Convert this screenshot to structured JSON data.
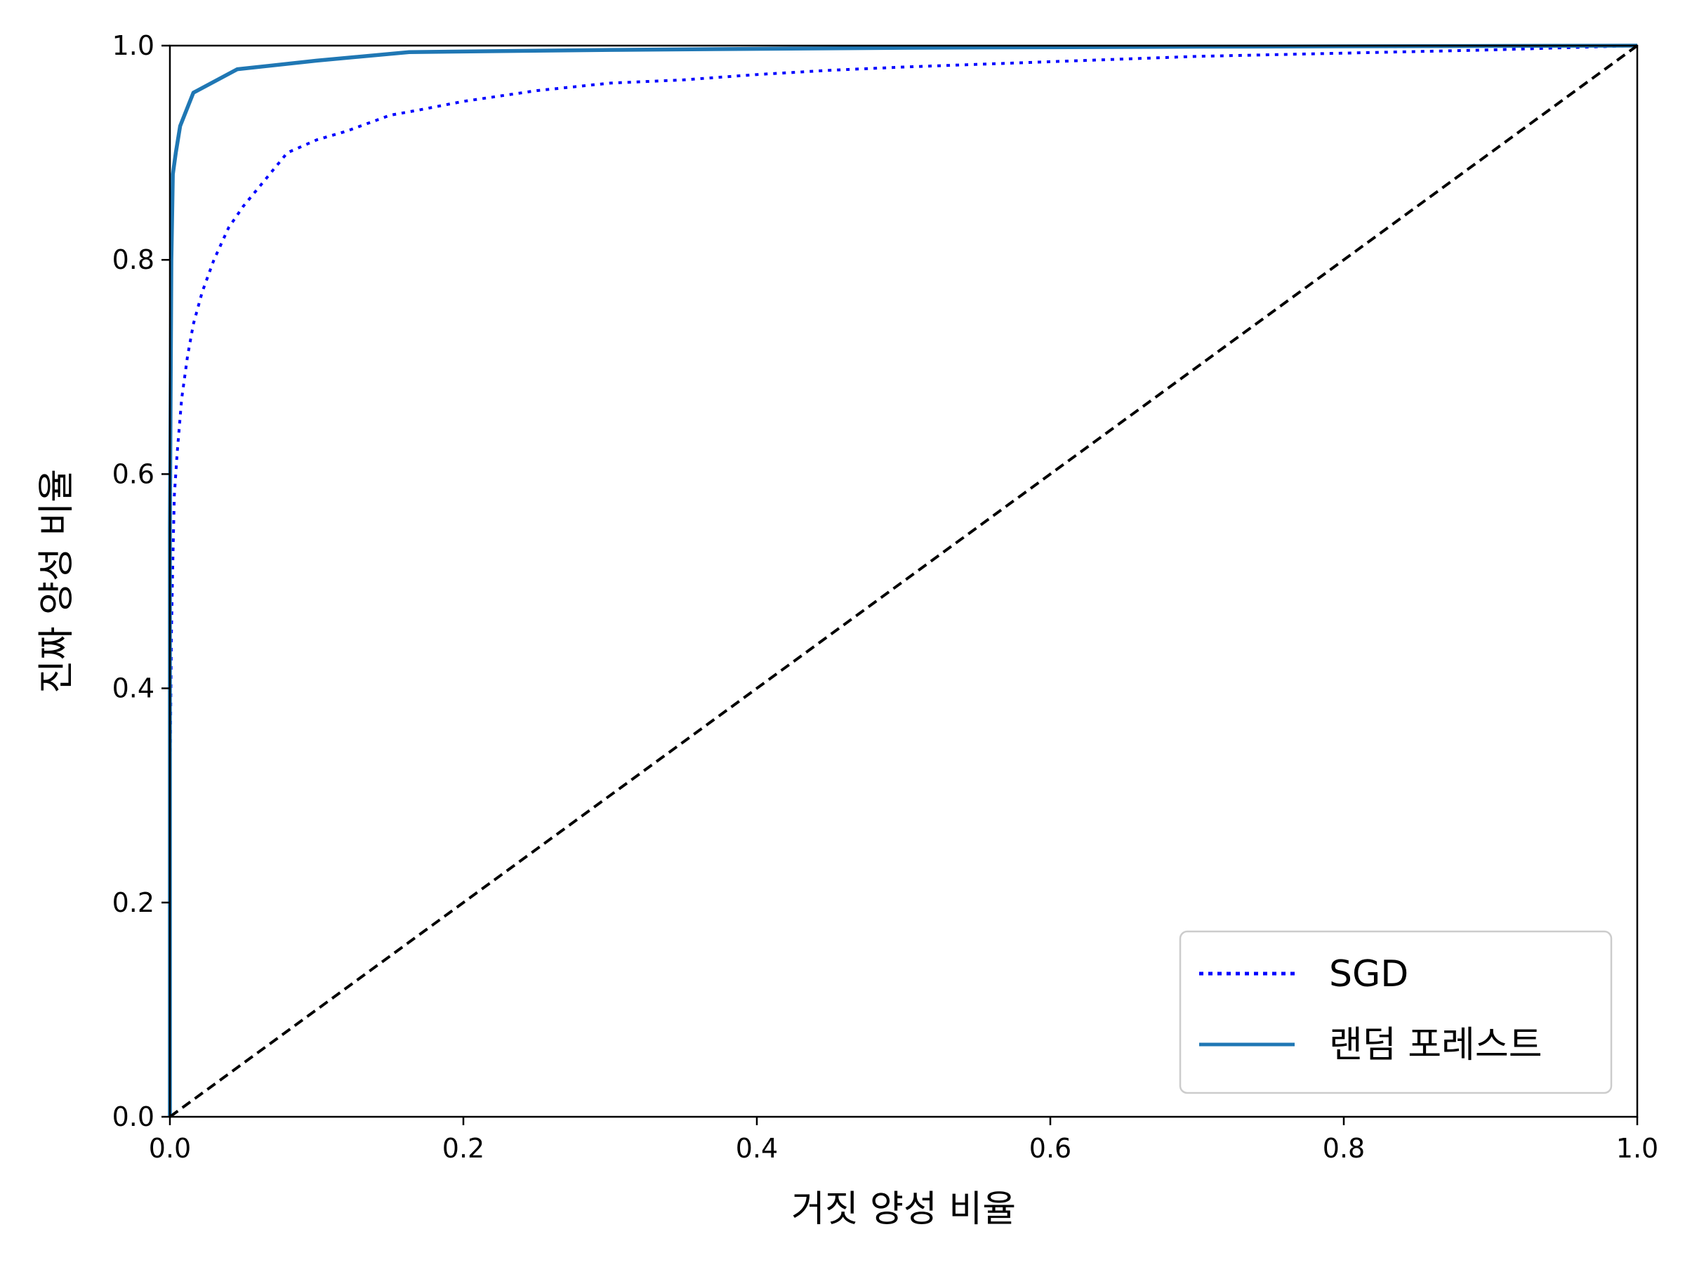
{
  "chart_data": {
    "type": "line",
    "title": "",
    "xlabel": "거짓 양성 비율",
    "ylabel": "진짜 양성 비율",
    "xlim": [
      0.0,
      1.0
    ],
    "ylim": [
      0.0,
      1.0
    ],
    "xticks": [
      "0.0",
      "0.2",
      "0.4",
      "0.6",
      "0.8",
      "1.0"
    ],
    "yticks": [
      "0.0",
      "0.2",
      "0.4",
      "0.6",
      "0.8",
      "1.0"
    ],
    "grid": false,
    "legend_position": "lower-right",
    "series": [
      {
        "name": "SGD",
        "color": "#0000ff",
        "style": "dotted",
        "x": [
          0.0,
          0.0,
          0.001,
          0.002,
          0.003,
          0.005,
          0.008,
          0.012,
          0.016,
          0.022,
          0.03,
          0.04,
          0.05,
          0.065,
          0.08,
          0.1,
          0.12,
          0.15,
          0.17,
          0.2,
          0.25,
          0.3,
          0.35,
          0.4,
          0.45,
          0.5,
          0.6,
          0.7,
          0.8,
          0.9,
          1.0
        ],
        "y": [
          0.0,
          0.3,
          0.45,
          0.52,
          0.58,
          0.62,
          0.67,
          0.71,
          0.74,
          0.77,
          0.8,
          0.83,
          0.85,
          0.875,
          0.9,
          0.912,
          0.92,
          0.935,
          0.94,
          0.948,
          0.958,
          0.965,
          0.968,
          0.973,
          0.977,
          0.98,
          0.985,
          0.99,
          0.993,
          0.996,
          1.0
        ]
      },
      {
        "name": "랜덤 포레스트",
        "color": "#1f77b4",
        "style": "solid",
        "x": [
          0.0,
          0.0,
          0.001,
          0.002,
          0.004,
          0.007,
          0.016,
          0.046,
          0.1,
          0.163,
          0.3,
          0.5,
          0.7,
          1.0
        ],
        "y": [
          0.0,
          0.55,
          0.8,
          0.88,
          0.9,
          0.925,
          0.956,
          0.978,
          0.986,
          0.994,
          0.996,
          0.998,
          0.999,
          1.0
        ]
      },
      {
        "name": "",
        "color": "#000000",
        "style": "dashed",
        "x": [
          0.0,
          1.0
        ],
        "y": [
          0.0,
          1.0
        ]
      }
    ]
  }
}
